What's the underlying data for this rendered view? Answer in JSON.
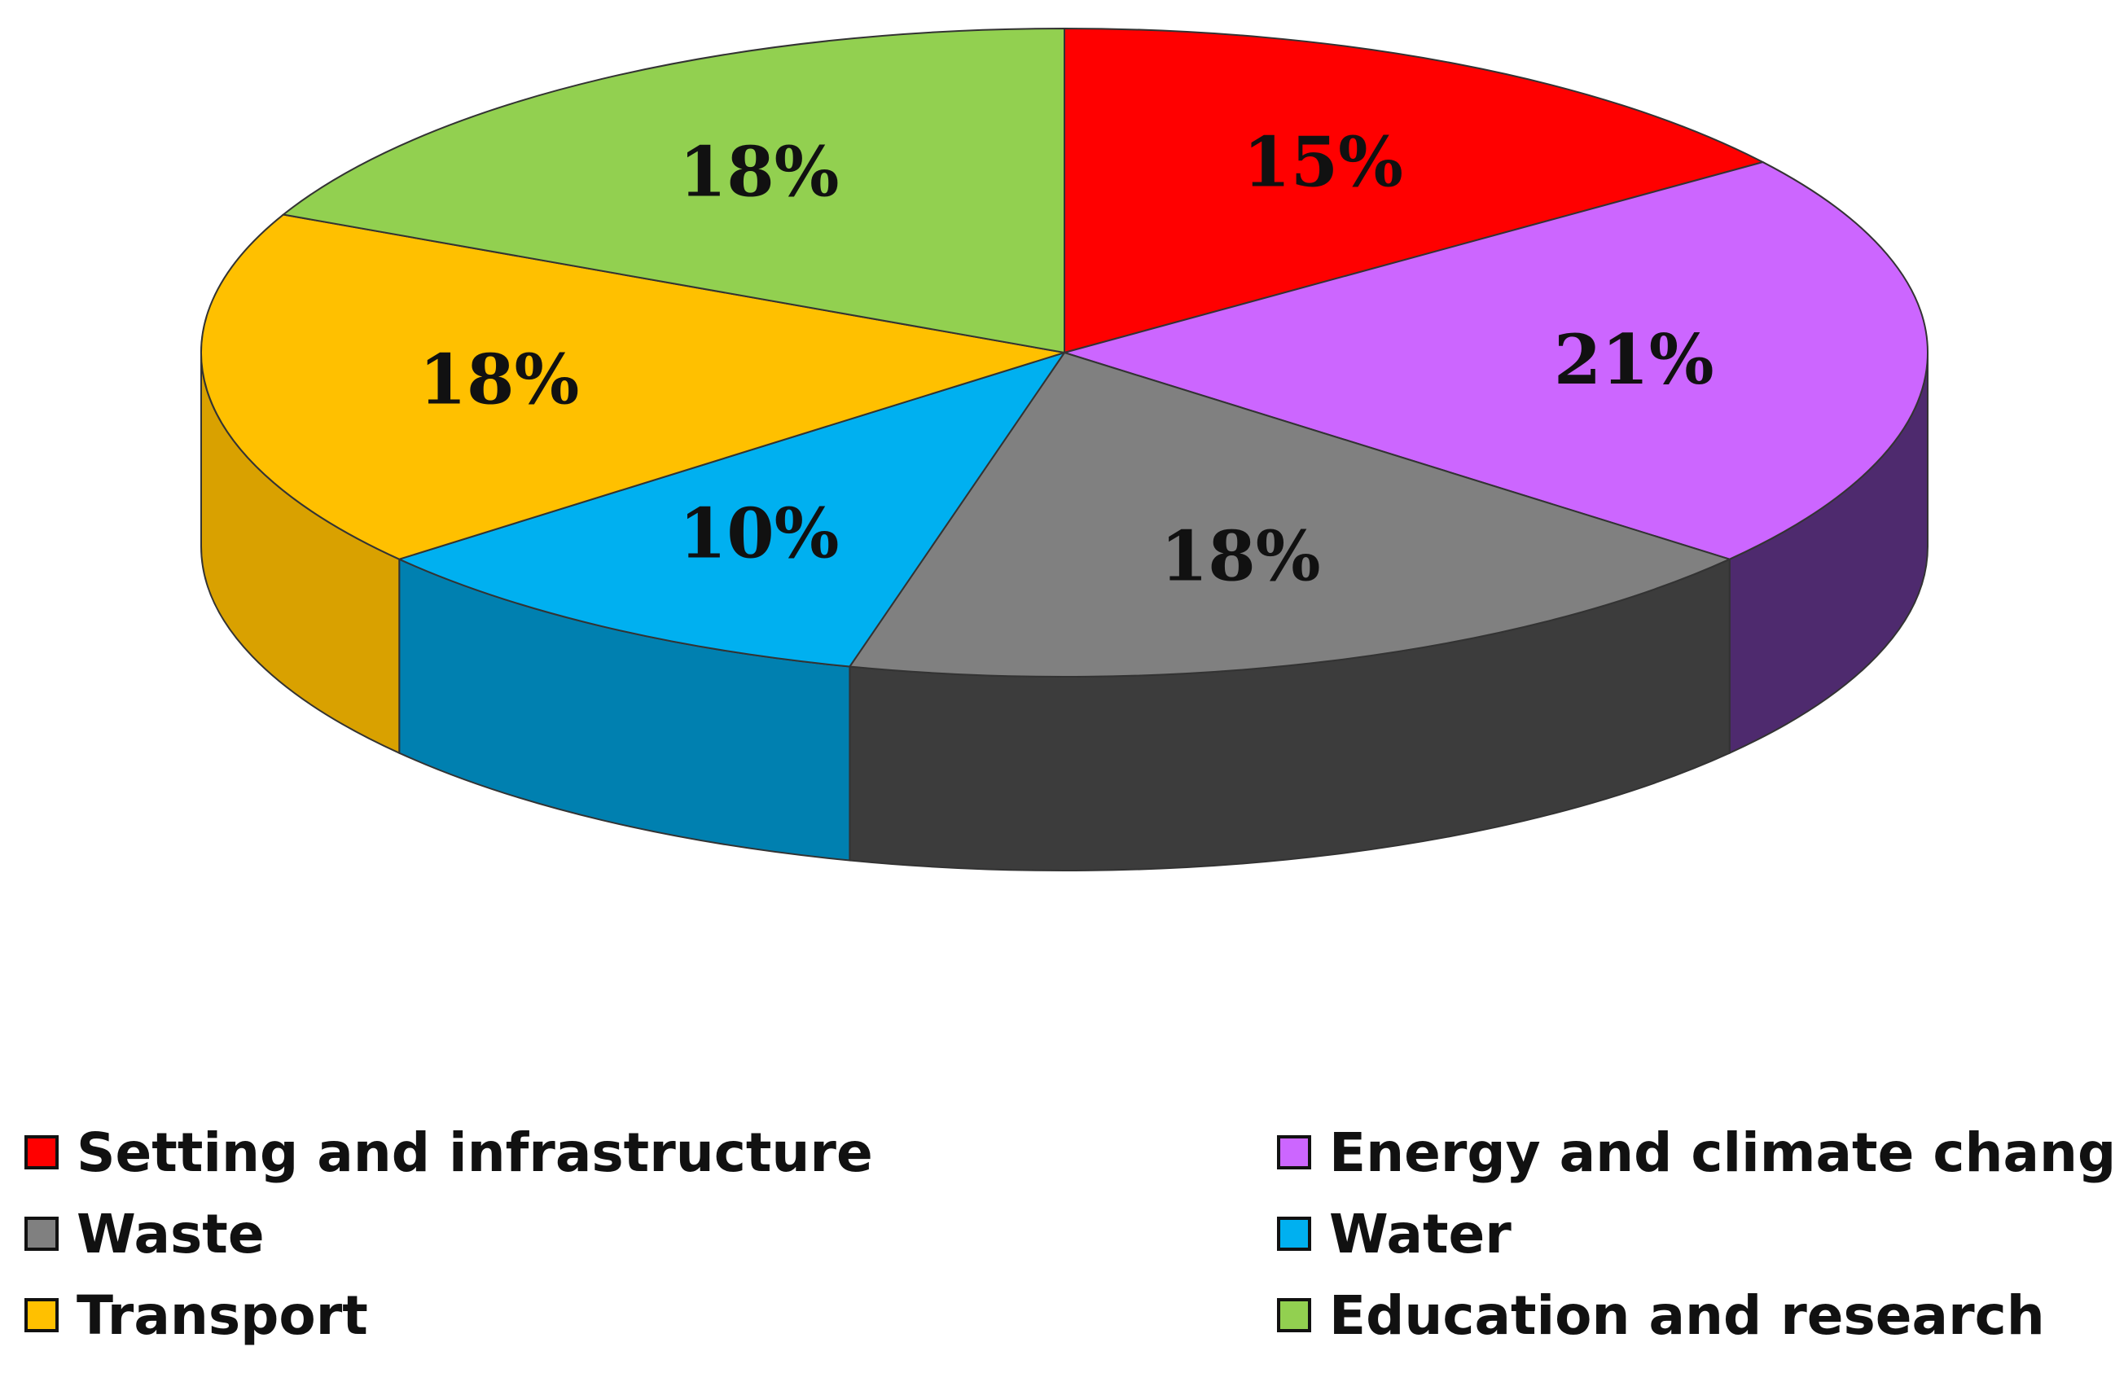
{
  "chart_data": {
    "type": "pie",
    "style": "3d",
    "title": "",
    "start_angle_deg": 90,
    "direction": "clockwise",
    "series": [
      {
        "name": "",
        "slices": [
          {
            "label": "Setting and infrastructure",
            "value": 15,
            "display": "15%",
            "color": "#FF0000",
            "side_color": "#B00000"
          },
          {
            "label": "Energy and climate change",
            "value": 21,
            "display": "21%",
            "color": "#CC66FF",
            "side_color": "#4E2A6E"
          },
          {
            "label": "Waste",
            "value": 18,
            "display": "18%",
            "color": "#808080",
            "side_color": "#3C3C3C"
          },
          {
            "label": "Water",
            "value": 10,
            "display": "10%",
            "color": "#00B0F0",
            "side_color": "#0080B0"
          },
          {
            "label": "Transport",
            "value": 18,
            "display": "18%",
            "color": "#FFC000",
            "side_color": "#D9A100"
          },
          {
            "label": "Education and research",
            "value": 18,
            "display": "18%",
            "color": "#92D050",
            "side_color": "#6EA236"
          }
        ]
      }
    ],
    "legend": {
      "position": "bottom",
      "columns": 2,
      "items": [
        {
          "label": "Setting and infrastructure",
          "color": "#FF0000"
        },
        {
          "label": "Energy and climate change",
          "color": "#CC66FF"
        },
        {
          "label": "Waste",
          "color": "#808080"
        },
        {
          "label": "Water",
          "color": "#00B0F0"
        },
        {
          "label": "Transport",
          "color": "#FFC000"
        },
        {
          "label": "Education and research",
          "color": "#92D050"
        }
      ]
    }
  }
}
